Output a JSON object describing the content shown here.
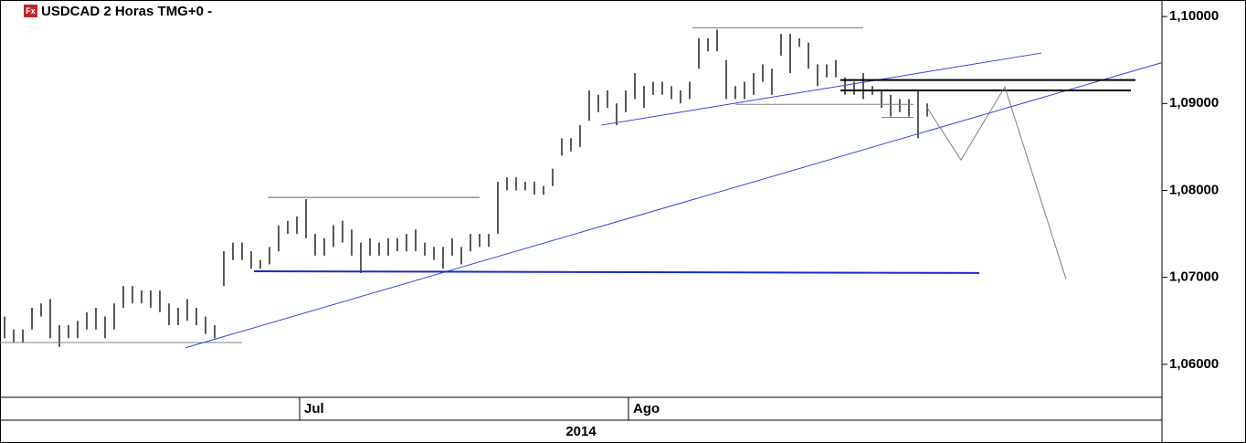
{
  "chart_data": {
    "type": "ohlc",
    "title": "USDCAD 2 Horas TMG+0 -",
    "icon_text": "Fx",
    "year_label": "2014",
    "color": "#000000",
    "low": [
      1.063,
      1.0625,
      1.0625,
      1.064,
      1.0655,
      1.063,
      1.062,
      1.063,
      1.063,
      1.064,
      1.064,
      1.063,
      1.064,
      1.0665,
      1.067,
      1.067,
      1.0665,
      1.066,
      1.0645,
      1.0645,
      1.065,
      1.0645,
      1.0635,
      1.063,
      1.069,
      1.072,
      1.072,
      1.071,
      1.071,
      1.0715,
      1.073,
      1.075,
      1.075,
      1.0745,
      1.0725,
      1.0725,
      1.0735,
      1.074,
      1.0725,
      1.0705,
      1.0725,
      1.0725,
      1.0725,
      1.073,
      1.073,
      1.073,
      1.0725,
      1.072,
      1.071,
      1.0725,
      1.0715,
      1.073,
      1.0735,
      1.0735,
      1.075,
      1.08,
      1.08,
      1.08,
      1.0795,
      1.0795,
      1.0805,
      1.084,
      1.0845,
      1.085,
      1.088,
      1.089,
      1.0895,
      1.0875,
      1.089,
      1.0905,
      1.0895,
      1.091,
      1.091,
      1.0905,
      1.09,
      1.0905,
      1.094,
      1.096,
      1.096,
      1.0905,
      1.0905,
      1.0905,
      1.091,
      1.0925,
      1.091,
      1.0955,
      1.0935,
      1.0965,
      1.094,
      1.092,
      1.093,
      1.093,
      1.091,
      1.091,
      1.0905,
      1.091,
      1.0895,
      1.0885,
      1.089,
      1.0885,
      1.086,
      1.0885
    ],
    "high": [
      1.0655,
      1.064,
      1.064,
      1.0665,
      1.067,
      1.0675,
      1.0645,
      1.0645,
      1.065,
      1.066,
      1.0665,
      1.0655,
      1.067,
      1.069,
      1.069,
      1.0685,
      1.0685,
      1.0685,
      1.067,
      1.0665,
      1.0675,
      1.0665,
      1.0655,
      1.0645,
      1.073,
      1.074,
      1.074,
      1.073,
      1.072,
      1.0735,
      1.076,
      1.0765,
      1.077,
      1.079,
      1.075,
      1.0745,
      1.076,
      1.0765,
      1.0755,
      1.074,
      1.0745,
      1.074,
      1.0745,
      1.0745,
      1.075,
      1.0755,
      1.074,
      1.0735,
      1.0735,
      1.0745,
      1.0735,
      1.075,
      1.075,
      1.075,
      1.081,
      1.0815,
      1.0815,
      1.081,
      1.081,
      1.0805,
      1.0825,
      1.086,
      1.086,
      1.0875,
      1.0915,
      1.091,
      1.0915,
      1.09,
      1.0915,
      1.0935,
      1.092,
      1.0925,
      1.0925,
      1.092,
      1.0915,
      1.0925,
      1.0975,
      1.0975,
      1.0985,
      1.095,
      1.092,
      1.0925,
      1.0935,
      1.0945,
      1.094,
      1.098,
      1.098,
      1.0975,
      1.097,
      1.0945,
      1.0945,
      1.095,
      1.093,
      1.0925,
      1.0935,
      1.092,
      1.0915,
      1.091,
      1.0905,
      1.0905,
      1.0915,
      1.09
    ],
    "xlim": [
      -0.5,
      126.7
    ],
    "xticks": [
      {
        "value": 32.3,
        "label": "Jul"
      },
      {
        "value": 68.3,
        "label": "Ago"
      }
    ],
    "ylim": [
      1.0562,
      1.1019
    ],
    "yticks": [
      {
        "value": 1.06,
        "label": "1,06000"
      },
      {
        "value": 1.07,
        "label": "1,07000"
      },
      {
        "value": 1.08,
        "label": "1,08000"
      },
      {
        "value": 1.09,
        "label": "1,09000"
      },
      {
        "value": 1.1,
        "label": "1,10000"
      }
    ],
    "drawings": [
      {
        "color": "#808080",
        "width": 1,
        "x": [
          -0.5,
          26
        ],
        "y": [
          1.0625,
          1.0625
        ]
      },
      {
        "color": "#3344dd",
        "width": 1,
        "x": [
          19.8,
          126.7
        ],
        "y": [
          1.0619,
          1.0947
        ]
      },
      {
        "color": "#1a2bcc",
        "width": 2,
        "x": [
          27.3,
          106.7
        ],
        "y": [
          1.0707,
          1.0705
        ]
      },
      {
        "color": "#606060",
        "width": 1,
        "x": [
          28.8,
          52
        ],
        "y": [
          1.0792,
          1.0792
        ]
      },
      {
        "color": "#3344dd",
        "width": 1,
        "x": [
          65.3,
          113.5
        ],
        "y": [
          1.0875,
          1.0958
        ]
      },
      {
        "color": "#808080",
        "width": 1,
        "x": [
          75.3,
          94
        ],
        "y": [
          1.0987,
          1.0987
        ]
      },
      {
        "color": "#808080",
        "width": 1,
        "x": [
          80,
          99.5
        ],
        "y": [
          1.0899,
          1.0899
        ]
      },
      {
        "color": "#000000",
        "width": 2,
        "x": [
          91.5,
          123.8
        ],
        "y": [
          1.0927,
          1.0927
        ]
      },
      {
        "color": "#000000",
        "width": 2,
        "x": [
          91.5,
          123.3
        ],
        "y": [
          1.0915,
          1.0915
        ]
      },
      {
        "color": "#808080",
        "width": 1,
        "x": [
          96,
          99.5
        ],
        "y": [
          1.0884,
          1.0884
        ]
      },
      {
        "color": "#808080",
        "width": 1,
        "x": [
          101,
          104.7,
          109.5,
          116.2
        ],
        "y": [
          1.0895,
          1.0835,
          1.0919,
          1.0698
        ]
      }
    ]
  }
}
